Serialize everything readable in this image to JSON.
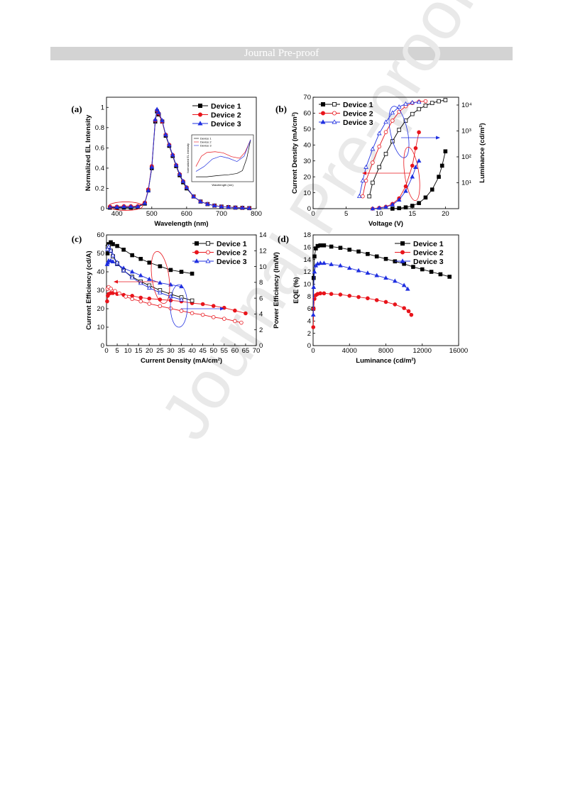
{
  "header": {
    "banner": "Journal Pre-proof"
  },
  "watermark": {
    "text": "Journal Pre-proof"
  },
  "figure": {
    "colors": {
      "device1": "#000000",
      "device2": "#e8141b",
      "device3": "#1f2fe0"
    },
    "panels": [
      {
        "id": "a",
        "letter": "(a)",
        "chart_data": {
          "type": "line",
          "xlabel": "Wavelength (nm)",
          "ylabel": "Normalized EL Intensity",
          "xlim": [
            370,
            800
          ],
          "ylim": [
            0,
            1.1
          ],
          "xticks": [
            400,
            500,
            600,
            700,
            800
          ],
          "yticks": [
            0.0,
            0.2,
            0.4,
            0.6,
            0.8,
            1.0
          ],
          "legend_position": "top-right",
          "series": [
            {
              "name": "Device 1",
              "marker": "filled-square",
              "x": [
                380,
                400,
                420,
                440,
                460,
                480,
                490,
                500,
                510,
                515,
                520,
                530,
                540,
                550,
                560,
                570,
                580,
                590,
                600,
                620,
                640,
                660,
                680,
                700,
                720,
                740,
                760,
                780
              ],
              "y": [
                0.01,
                0.01,
                0.01,
                0.01,
                0.015,
                0.05,
                0.18,
                0.4,
                0.86,
                0.96,
                0.93,
                0.86,
                0.72,
                0.62,
                0.52,
                0.42,
                0.33,
                0.26,
                0.2,
                0.12,
                0.07,
                0.045,
                0.03,
                0.02,
                0.015,
                0.01,
                0.008,
                0.005
              ]
            },
            {
              "name": "Device 2",
              "marker": "filled-circle",
              "x": [
                380,
                400,
                420,
                440,
                460,
                480,
                490,
                500,
                510,
                515,
                520,
                530,
                540,
                550,
                560,
                570,
                580,
                590,
                600,
                620,
                640,
                660,
                680,
                700,
                720,
                740,
                760,
                780
              ],
              "y": [
                0.02,
                0.02,
                0.025,
                0.025,
                0.025,
                0.06,
                0.19,
                0.42,
                0.87,
                0.97,
                0.94,
                0.86,
                0.73,
                0.63,
                0.53,
                0.43,
                0.34,
                0.27,
                0.21,
                0.12,
                0.07,
                0.045,
                0.03,
                0.02,
                0.015,
                0.01,
                0.008,
                0.005
              ]
            },
            {
              "name": "Device 3",
              "marker": "filled-triangle",
              "x": [
                380,
                400,
                420,
                440,
                460,
                480,
                490,
                500,
                510,
                515,
                520,
                530,
                540,
                550,
                560,
                570,
                580,
                590,
                600,
                620,
                640,
                660,
                680,
                700,
                720,
                740,
                760,
                780
              ],
              "y": [
                0.015,
                0.015,
                0.02,
                0.02,
                0.02,
                0.055,
                0.18,
                0.41,
                0.88,
                0.98,
                0.95,
                0.87,
                0.73,
                0.63,
                0.53,
                0.43,
                0.34,
                0.27,
                0.21,
                0.12,
                0.07,
                0.045,
                0.03,
                0.02,
                0.015,
                0.01,
                0.008,
                0.005
              ]
            }
          ],
          "inset": {
            "xlabel": "Wavelength (nm)",
            "ylabel": "Normalized EL Intensity",
            "series_names": [
              "Device 1",
              "Device 2",
              "Device 3"
            ]
          }
        }
      },
      {
        "id": "b",
        "letter": "(b)",
        "chart_data": {
          "type": "line",
          "xlabel": "Voltage (V)",
          "ylabel": "Current Density (mA/cm²)",
          "y2label": "Luminance (cd/m²)",
          "xlim": [
            0,
            22
          ],
          "ylim": [
            0,
            70
          ],
          "xticks": [
            0,
            5,
            10,
            15,
            20
          ],
          "yticks": [
            0,
            10,
            20,
            30,
            40,
            50,
            60,
            70
          ],
          "y2_scale": "log",
          "y2lim": [
            1,
            20000
          ],
          "y2ticks": [
            "10¹",
            "10²",
            "10³",
            "10⁴"
          ],
          "legend_position": "top-left",
          "series": [
            {
              "name": "Device 1",
              "axis": "left",
              "marker": "filled-square",
              "x": [
                12,
                13,
                14,
                15,
                16,
                17,
                18,
                19,
                19.5,
                20
              ],
              "y": [
                0,
                0.3,
                0.8,
                1.8,
                3.5,
                7,
                12,
                20,
                27,
                36
              ]
            },
            {
              "name": "Device 2",
              "axis": "left",
              "marker": "filled-circle",
              "x": [
                9,
                10,
                11,
                12,
                13,
                14,
                15,
                15.5,
                16
              ],
              "y": [
                0,
                0.5,
                1.2,
                3,
                6.5,
                14,
                27,
                38,
                48
              ]
            },
            {
              "name": "Device 3",
              "axis": "left",
              "marker": "filled-triangle",
              "x": [
                9,
                10,
                11,
                12,
                13,
                14,
                15,
                15.5,
                16
              ],
              "y": [
                0,
                0.4,
                1,
                2.5,
                5.5,
                11,
                20,
                26,
                30
              ]
            },
            {
              "name": "Device 1",
              "axis": "right",
              "marker": "open-square",
              "x": [
                8.5,
                9,
                10,
                11,
                12,
                13,
                14,
                15,
                16,
                17,
                18,
                19,
                20
              ],
              "y": [
                3,
                10,
                40,
                130,
                400,
                1100,
                2500,
                4500,
                7000,
                9500,
                12000,
                14000,
                15500
              ]
            },
            {
              "name": "Device 2",
              "axis": "right",
              "marker": "open-circle",
              "x": [
                7.5,
                8,
                9,
                10,
                11,
                12,
                13,
                14,
                15,
                16,
                17
              ],
              "y": [
                3,
                12,
                60,
                250,
                900,
                2500,
                5500,
                9000,
                12000,
                13500,
                14000
              ]
            },
            {
              "name": "Device 3",
              "axis": "right",
              "marker": "open-triangle",
              "x": [
                7,
                7.5,
                8,
                9,
                10,
                11,
                12,
                13,
                14,
                15,
                16
              ],
              "y": [
                3,
                12,
                40,
                200,
                800,
                2200,
                5000,
                8500,
                11000,
                12500,
                13000
              ]
            }
          ]
        }
      },
      {
        "id": "c",
        "letter": "(c)",
        "chart_data": {
          "type": "line",
          "xlabel": "Current Density (mA/cm²)",
          "ylabel": "Current Efficiency (cd/A)",
          "y2label": "Power Efficiency (lm/W)",
          "xlim": [
            0,
            70
          ],
          "ylim": [
            0,
            60
          ],
          "y2lim": [
            0,
            14
          ],
          "xticks": [
            0,
            5,
            10,
            15,
            20,
            25,
            30,
            35,
            40,
            45,
            50,
            55,
            60,
            65,
            70
          ],
          "yticks": [
            0,
            10,
            20,
            30,
            40,
            50,
            60
          ],
          "y2ticks": [
            0,
            2,
            4,
            6,
            8,
            10,
            12,
            14
          ],
          "legend_position": "top-right",
          "series": [
            {
              "name": "Device 1",
              "axis": "left",
              "marker": "filled-square",
              "x": [
                0.5,
                1,
                2,
                3,
                5,
                8,
                12,
                16,
                20,
                25,
                30,
                35,
                40
              ],
              "y": [
                50,
                55,
                56,
                55,
                54,
                52,
                49,
                47,
                45,
                43,
                41,
                40,
                39
              ]
            },
            {
              "name": "Device 2",
              "axis": "left",
              "marker": "filled-circle",
              "x": [
                0.3,
                0.6,
                1,
                2,
                3,
                5,
                8,
                12,
                16,
                20,
                25,
                30,
                35,
                40,
                45,
                50,
                55,
                60,
                65
              ],
              "y": [
                24,
                27,
                28,
                28.5,
                28.5,
                28,
                27.5,
                27,
                26,
                25.5,
                25,
                24.5,
                24,
                23,
                22.5,
                21.5,
                20.5,
                19,
                17.5
              ]
            },
            {
              "name": "Device 3",
              "axis": "left",
              "marker": "filled-triangle",
              "x": [
                0.3,
                0.6,
                1,
                2,
                3,
                5,
                8,
                12,
                16,
                20,
                25,
                30,
                35
              ],
              "y": [
                44,
                45,
                46,
                46,
                45.5,
                44,
                42,
                40,
                38,
                36,
                34,
                33,
                32
              ]
            },
            {
              "name": "Device 1",
              "axis": "right",
              "marker": "open-square",
              "x": [
                0.5,
                1,
                2,
                3,
                5,
                8,
                12,
                16,
                20,
                25,
                30,
                35,
                40
              ],
              "y": [
                12.5,
                12.6,
                12,
                11.3,
                10.4,
                9.5,
                8.7,
                8.1,
                7.6,
                7.0,
                6.5,
                6.1,
                5.7
              ]
            },
            {
              "name": "Device 2",
              "axis": "right",
              "marker": "open-circle",
              "x": [
                0.5,
                1,
                2,
                4,
                6,
                9,
                12,
                16,
                20,
                25,
                30,
                35,
                40,
                45,
                50,
                55,
                60,
                63
              ],
              "y": [
                7.2,
                7.4,
                7.2,
                6.9,
                6.6,
                6.2,
                5.9,
                5.6,
                5.3,
                5.0,
                4.7,
                4.4,
                4.1,
                3.9,
                3.6,
                3.4,
                3.1,
                2.9
              ]
            },
            {
              "name": "Device 3",
              "axis": "right",
              "marker": "open-triangle",
              "x": [
                0.5,
                1,
                2,
                3,
                5,
                8,
                12,
                16,
                20,
                25,
                30,
                35
              ],
              "y": [
                12.2,
                12.5,
                12,
                11.4,
                10.5,
                9.5,
                8.6,
                7.9,
                7.3,
                6.7,
                6.2,
                5.8
              ]
            }
          ]
        }
      },
      {
        "id": "d",
        "letter": "(d)",
        "chart_data": {
          "type": "line",
          "xlabel": "Luminance (cd/m²)",
          "ylabel": "EQE (%)",
          "xlim": [
            0,
            16000
          ],
          "ylim": [
            0,
            18
          ],
          "xticks": [
            0,
            4000,
            8000,
            12000,
            16000
          ],
          "yticks": [
            0,
            2,
            4,
            6,
            8,
            10,
            12,
            14,
            16,
            18
          ],
          "legend_position": "top-right",
          "series": [
            {
              "name": "Device 1",
              "marker": "filled-square",
              "x": [
                20,
                60,
                150,
                300,
                500,
                800,
                1200,
                2000,
                3000,
                4000,
                5000,
                6000,
                7000,
                8000,
                9000,
                10000,
                11000,
                12000,
                13000,
                14000,
                15000
              ],
              "y": [
                6,
                11,
                14.5,
                15.8,
                16.2,
                16.3,
                16.3,
                16.1,
                15.9,
                15.6,
                15.3,
                14.9,
                14.5,
                14.1,
                13.7,
                13.3,
                12.8,
                12.4,
                12.0,
                11.6,
                11.2
              ]
            },
            {
              "name": "Device 2",
              "marker": "filled-circle",
              "x": [
                20,
                60,
                150,
                300,
                500,
                800,
                1200,
                2000,
                3000,
                4000,
                5000,
                6000,
                7000,
                8000,
                9000,
                10000,
                10500,
                10800
              ],
              "y": [
                3,
                6,
                7.6,
                8.2,
                8.4,
                8.5,
                8.5,
                8.4,
                8.3,
                8.1,
                7.9,
                7.7,
                7.4,
                7.1,
                6.7,
                6.1,
                5.6,
                5.0
              ]
            },
            {
              "name": "Device 3",
              "marker": "filled-triangle",
              "x": [
                20,
                60,
                150,
                300,
                500,
                800,
                1200,
                2000,
                3000,
                4000,
                5000,
                6000,
                7000,
                8000,
                9000,
                10000,
                10400
              ],
              "y": [
                5,
                9.5,
                12,
                13,
                13.3,
                13.4,
                13.4,
                13.2,
                13.0,
                12.6,
                12.2,
                11.8,
                11.4,
                11.0,
                10.5,
                9.8,
                9.2
              ]
            }
          ]
        }
      }
    ]
  }
}
